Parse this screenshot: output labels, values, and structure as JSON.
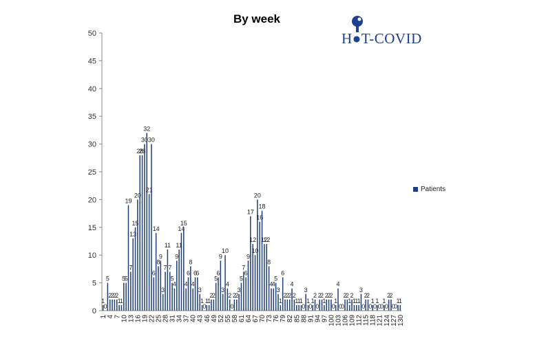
{
  "chart_data": {
    "type": "bar",
    "title": "By week",
    "xlabel": "",
    "ylabel": "",
    "ylim": [
      0,
      50
    ],
    "yticks": [
      0,
      5,
      10,
      15,
      20,
      25,
      30,
      35,
      40,
      45,
      50
    ],
    "legend_position": "right",
    "bar_color": "#1f3f7a",
    "series": [
      {
        "name": "Patients",
        "values": [
          1,
          0,
          5,
          2,
          2,
          2,
          2,
          1,
          1,
          5,
          5,
          19,
          7,
          13,
          15,
          20,
          28,
          28,
          30,
          32,
          21,
          30,
          6,
          14,
          8,
          9,
          3,
          7,
          11,
          7,
          5,
          4,
          9,
          11,
          14,
          15,
          4,
          6,
          8,
          4,
          6,
          6,
          3,
          1,
          0,
          1,
          1,
          2,
          2,
          5,
          6,
          9,
          3,
          10,
          4,
          2,
          0,
          2,
          2,
          3,
          5,
          7,
          6,
          9,
          17,
          12,
          10,
          20,
          16,
          18,
          12,
          12,
          8,
          4,
          4,
          5,
          3,
          1,
          6,
          2,
          2,
          2,
          4,
          2,
          1,
          1,
          1,
          0,
          3,
          1,
          0,
          1,
          2,
          0,
          2,
          2,
          1,
          2,
          2,
          2,
          0,
          1,
          4,
          0,
          0,
          2,
          2,
          1,
          2,
          1,
          1,
          1,
          3,
          0,
          2,
          2,
          0,
          1,
          0,
          1,
          0,
          0,
          1,
          0,
          2,
          2,
          0,
          0,
          1,
          1
        ]
      }
    ],
    "xtick_labels": [
      "1",
      "4",
      "7",
      "10",
      "13",
      "16",
      "19",
      "22",
      "25",
      "28",
      "31",
      "34",
      "37",
      "40",
      "43",
      "46",
      "49",
      "52",
      "55",
      "58",
      "61",
      "64",
      "67",
      "70",
      "73",
      "76",
      "79",
      "82",
      "85",
      "88",
      "91",
      "94",
      "97",
      "100",
      "103",
      "106",
      "109",
      "112",
      "115",
      "118",
      "121",
      "124",
      "127",
      "130"
    ]
  },
  "logo_text": "H●T-COVID"
}
